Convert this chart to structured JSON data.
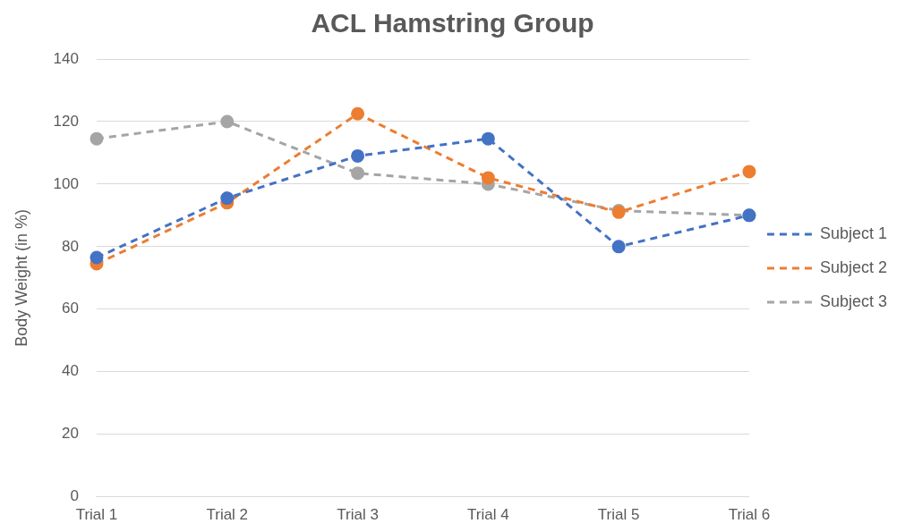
{
  "chart_data": {
    "type": "line",
    "title": "ACL Hamstring Group",
    "ylabel": "Body Weight (in %)",
    "categories": [
      "Trial 1",
      "Trial 2",
      "Trial 3",
      "Trial 4",
      "Trial 5",
      "Trial 6"
    ],
    "series": [
      {
        "name": "Subject 1",
        "color": "#4472c4",
        "values": [
          76.5,
          95.5,
          109,
          114.5,
          80,
          90
        ]
      },
      {
        "name": "Subject 2",
        "color": "#ed7d31",
        "values": [
          74.5,
          94,
          122.5,
          102,
          91,
          104
        ]
      },
      {
        "name": "Subject 3",
        "color": "#a5a5a5",
        "values": [
          114.5,
          120,
          103.5,
          100,
          91.5,
          90
        ]
      }
    ],
    "ylim": [
      0,
      140
    ],
    "yticks": [
      0,
      20,
      40,
      60,
      80,
      100,
      120,
      140
    ],
    "grid": "y",
    "legend": "right",
    "marker": "circle",
    "line_style": "dashed"
  }
}
